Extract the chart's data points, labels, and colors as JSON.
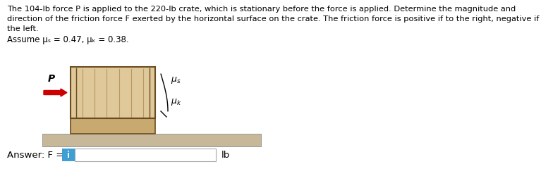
{
  "title_lines": [
    "The 104-lb force P is applied to the 220-lb crate, which is stationary before the force is applied. Determine the magnitude and",
    "direction of the friction force F exerted by the horizontal surface on the crate. The friction force is positive if to the right, negative if to",
    "the left."
  ],
  "assume_line": "Assume μₛ = 0.47, μₖ = 0.38.",
  "answer_label": "Answer: F = ",
  "unit_label": "lb",
  "bg_color": "#ffffff",
  "text_color": "#000000",
  "crate_color_light": "#dfc89a",
  "crate_color_top": "#e8d5a8",
  "crate_color_bottom": "#c8aa70",
  "ground_color_top": "#c8b89a",
  "ground_color": "#b8a882",
  "arrow_color": "#cc0000",
  "input_box_color": "#3d9fd4",
  "stripe_color": "#b89860",
  "border_color": "#6b4c20",
  "font_size_main": 8.2,
  "font_size_assume": 8.5
}
